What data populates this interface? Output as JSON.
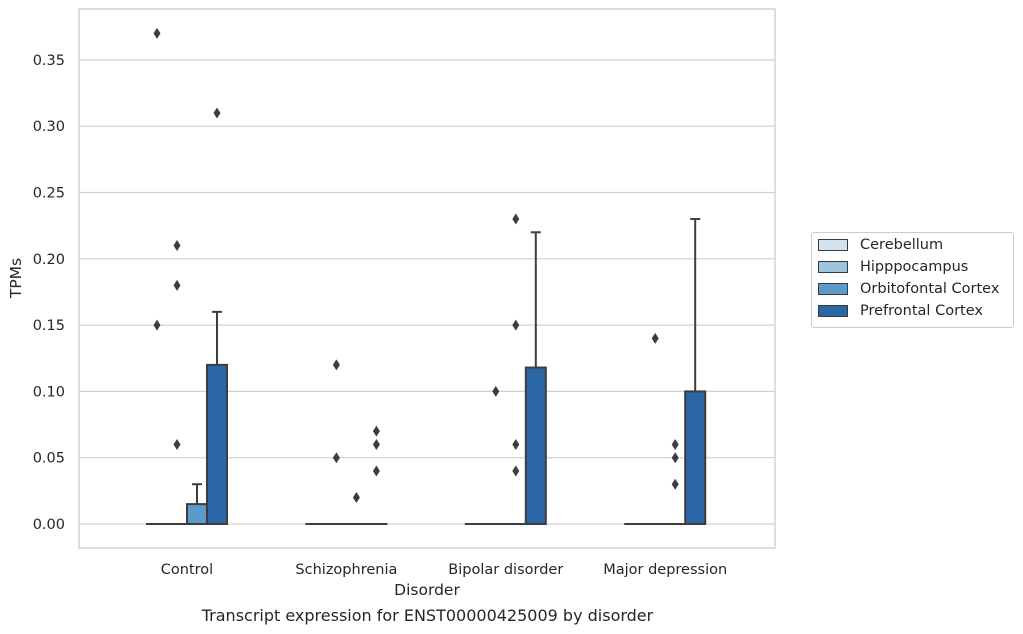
{
  "caption": "Transcript expression for ENST00000425009 by disorder",
  "chart_data": {
    "type": "box",
    "xlabel": "Disorder",
    "ylabel": "TPMs",
    "categories": [
      "Control",
      "Schizophrenia",
      "Bipolar disorder",
      "Major depression"
    ],
    "ylim": [
      -0.018,
      0.388
    ],
    "yticks": [
      "0.00",
      "0.05",
      "0.10",
      "0.15",
      "0.20",
      "0.25",
      "0.30",
      "0.35"
    ],
    "grid": "horizontal",
    "legend_position": "right",
    "series": [
      {
        "name": "Cerebellum",
        "color": "#d1e2f1",
        "boxes": [
          {
            "q1": 0,
            "median": 0,
            "q3": 0,
            "whislo": 0,
            "whishi": 0,
            "fliers": [
              0.37,
              0.15
            ]
          },
          {
            "q1": 0,
            "median": 0,
            "q3": 0,
            "whislo": 0,
            "whishi": 0,
            "fliers": []
          },
          {
            "q1": 0,
            "median": 0,
            "q3": 0,
            "whislo": 0,
            "whishi": 0,
            "fliers": []
          },
          {
            "q1": 0,
            "median": 0,
            "q3": 0,
            "whislo": 0,
            "whishi": 0,
            "fliers": []
          }
        ]
      },
      {
        "name": "Hipppocampus",
        "color": "#9cc6e0",
        "boxes": [
          {
            "q1": 0,
            "median": 0,
            "q3": 0,
            "whislo": 0,
            "whishi": 0,
            "fliers": [
              0.21,
              0.18,
              0.06
            ]
          },
          {
            "q1": 0,
            "median": 0,
            "q3": 0,
            "whislo": 0,
            "whishi": 0,
            "fliers": [
              0.12,
              0.05
            ]
          },
          {
            "q1": 0,
            "median": 0,
            "q3": 0,
            "whislo": 0,
            "whishi": 0,
            "fliers": [
              0.1
            ]
          },
          {
            "q1": 0,
            "median": 0,
            "q3": 0,
            "whislo": 0,
            "whishi": 0,
            "fliers": [
              0.14
            ]
          }
        ]
      },
      {
        "name": "Orbitofontal Cortex",
        "color": "#5a9bc9",
        "boxes": [
          {
            "q1": 0,
            "median": 0,
            "q3": 0.015,
            "whislo": 0,
            "whishi": 0.03,
            "fliers": []
          },
          {
            "q1": 0,
            "median": 0,
            "q3": 0,
            "whislo": 0,
            "whishi": 0,
            "fliers": [
              0.02
            ]
          },
          {
            "q1": 0,
            "median": 0,
            "q3": 0,
            "whislo": 0,
            "whishi": 0,
            "fliers": [
              0.23,
              0.15,
              0.06,
              0.04
            ]
          },
          {
            "q1": 0,
            "median": 0,
            "q3": 0,
            "whislo": 0,
            "whishi": 0,
            "fliers": [
              0.06,
              0.05,
              0.03
            ]
          }
        ]
      },
      {
        "name": "Prefrontal Cortex",
        "color": "#2b67a5",
        "boxes": [
          {
            "q1": 0,
            "median": 0,
            "q3": 0.12,
            "whislo": 0,
            "whishi": 0.16,
            "fliers": [
              0.31
            ]
          },
          {
            "q1": 0,
            "median": 0,
            "q3": 0,
            "whislo": 0,
            "whishi": 0,
            "fliers": [
              0.07,
              0.06,
              0.04
            ]
          },
          {
            "q1": 0,
            "median": 0,
            "q3": 0.118,
            "whislo": 0,
            "whishi": 0.22,
            "fliers": []
          },
          {
            "q1": 0,
            "median": 0,
            "q3": 0.1,
            "whislo": 0,
            "whishi": 0.23,
            "fliers": []
          }
        ]
      }
    ]
  }
}
